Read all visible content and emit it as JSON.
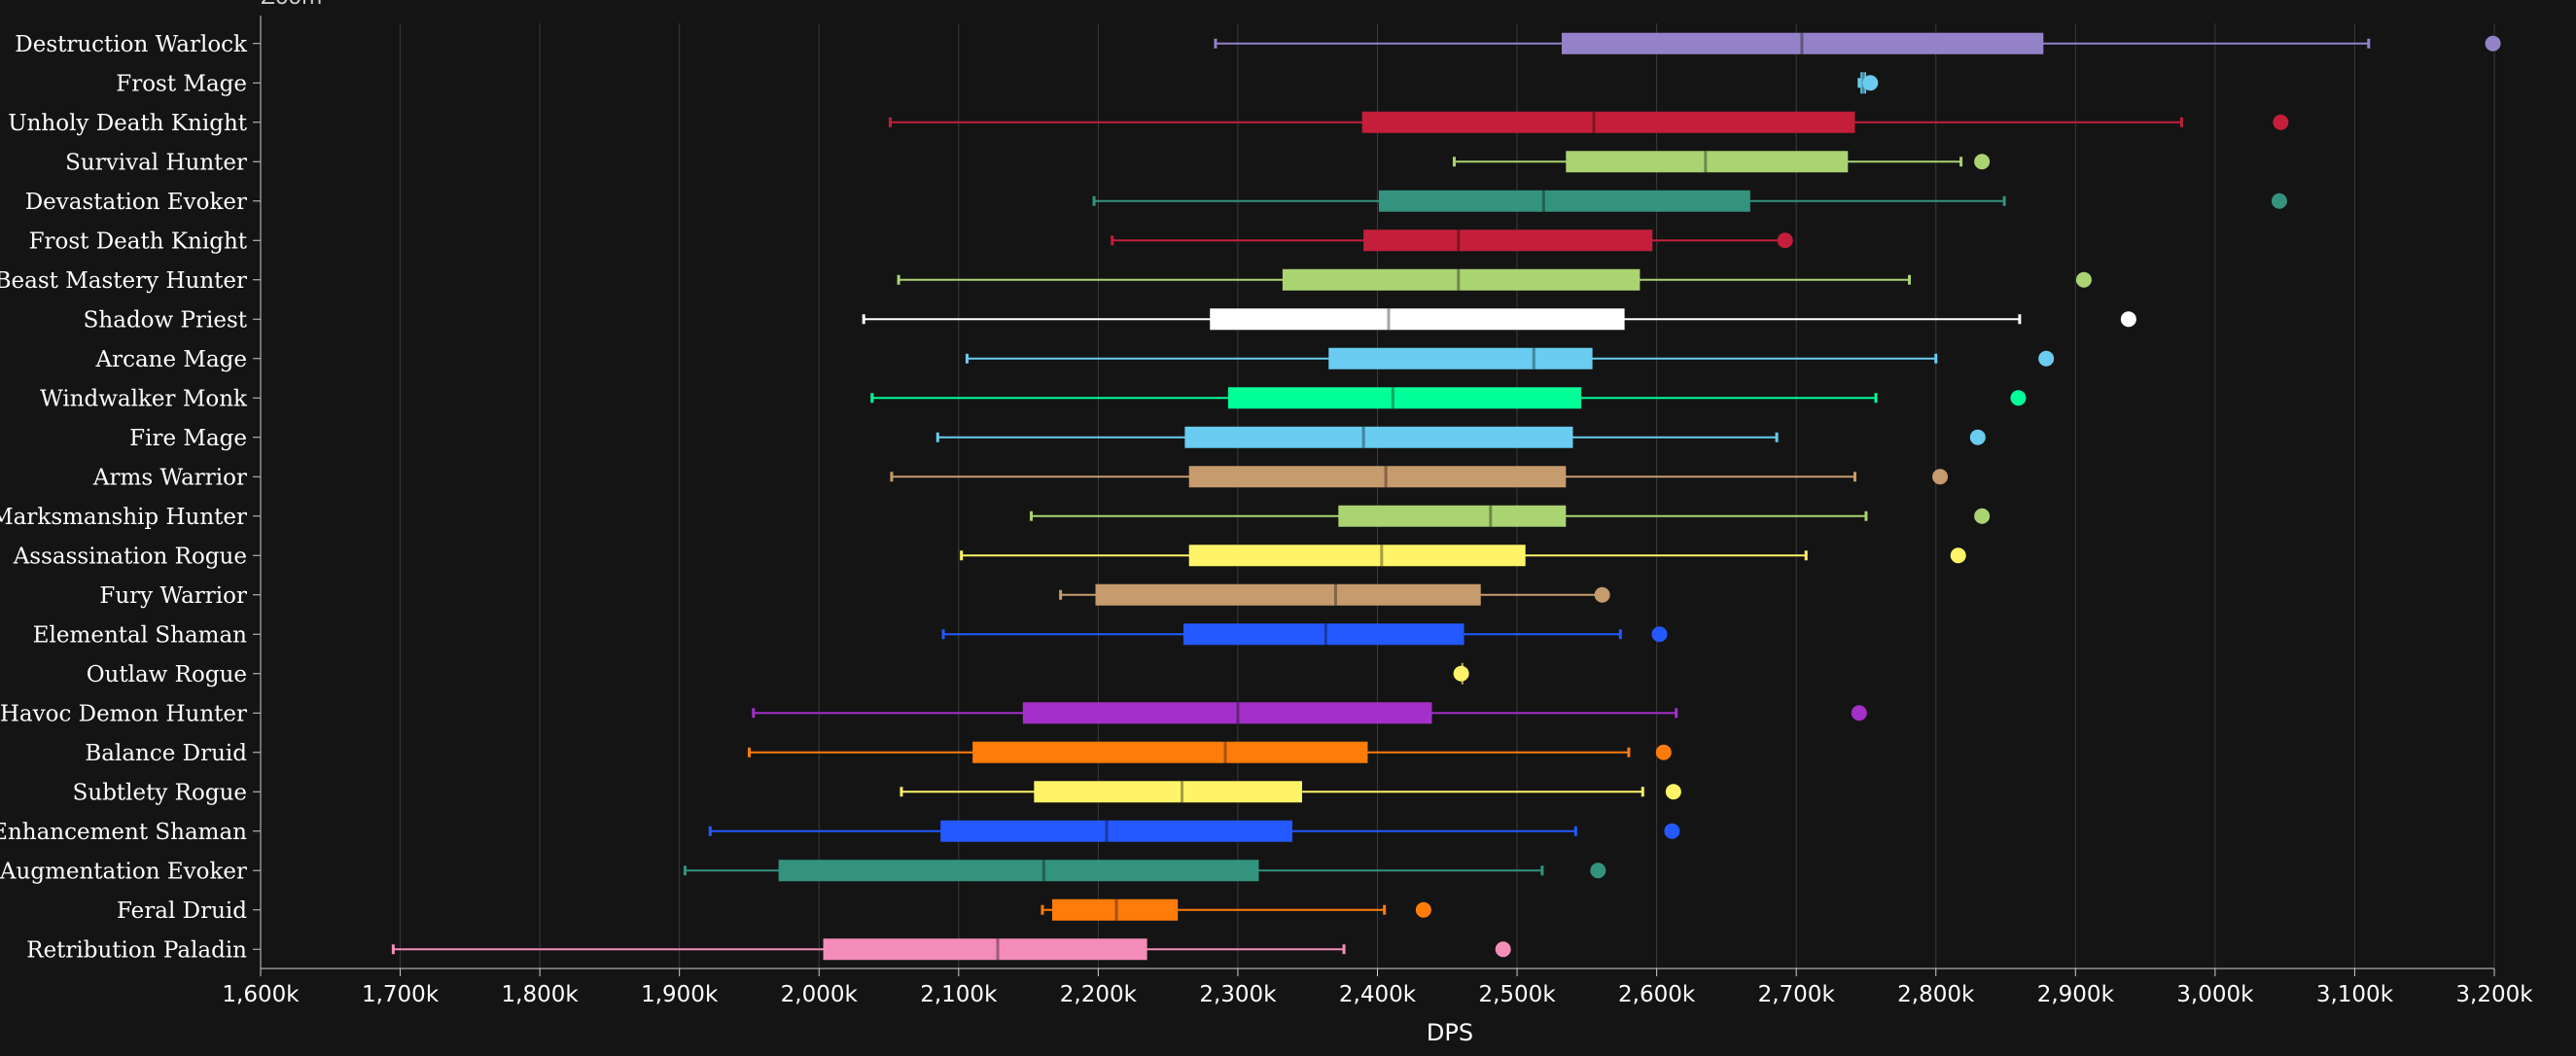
{
  "header": {
    "zoom_label": "Zoom"
  },
  "chart_data": {
    "type": "boxplot",
    "xlabel": "DPS",
    "xlim": [
      1600000,
      3200000
    ],
    "x_ticks": [
      1600000,
      1700000,
      1800000,
      1900000,
      2000000,
      2100000,
      2200000,
      2300000,
      2400000,
      2500000,
      2600000,
      2700000,
      2800000,
      2900000,
      3000000,
      3100000,
      3200000
    ],
    "x_tick_labels": [
      "1,600k",
      "1,700k",
      "1,800k",
      "1,900k",
      "2,000k",
      "2,100k",
      "2,200k",
      "2,300k",
      "2,400k",
      "2,500k",
      "2,600k",
      "2,700k",
      "2,800k",
      "2,900k",
      "3,000k",
      "3,100k",
      "3,200k"
    ],
    "grid": true,
    "series": [
      {
        "name": "Destruction Warlock",
        "color": "#9482c9",
        "min": 2284000,
        "q1": 2532000,
        "median": 2704000,
        "q3": 2877000,
        "max": 3110000,
        "outliers": [
          3199000
        ]
      },
      {
        "name": "Frost Mage",
        "color": "#69ccf0",
        "min": 2745000,
        "q1": 2746000,
        "median": 2748000,
        "q3": 2750000,
        "max": 2752000,
        "outliers": [
          2753000
        ]
      },
      {
        "name": "Unholy Death Knight",
        "color": "#c41e3a",
        "min": 2051000,
        "q1": 2389000,
        "median": 2555000,
        "q3": 2742000,
        "max": 2976000,
        "outliers": [
          3047000
        ]
      },
      {
        "name": "Survival Hunter",
        "color": "#aad372",
        "min": 2455000,
        "q1": 2535000,
        "median": 2635000,
        "q3": 2737000,
        "max": 2818000,
        "outliers": [
          2833000
        ]
      },
      {
        "name": "Devastation Evoker",
        "color": "#33937f",
        "min": 2197000,
        "q1": 2401000,
        "median": 2519000,
        "q3": 2667000,
        "max": 2849000,
        "outliers": [
          3046000
        ]
      },
      {
        "name": "Frost Death Knight",
        "color": "#c41e3a",
        "min": 2210000,
        "q1": 2390000,
        "median": 2458000,
        "q3": 2597000,
        "max": 2692000,
        "outliers": [
          2692000
        ]
      },
      {
        "name": "Beast Mastery Hunter",
        "color": "#aad372",
        "min": 2057000,
        "q1": 2332000,
        "median": 2458000,
        "q3": 2588000,
        "max": 2781000,
        "outliers": [
          2906000
        ]
      },
      {
        "name": "Shadow Priest",
        "color": "#ffffff",
        "min": 2032000,
        "q1": 2280000,
        "median": 2408000,
        "q3": 2577000,
        "max": 2860000,
        "outliers": [
          2938000
        ]
      },
      {
        "name": "Arcane Mage",
        "color": "#69ccf0",
        "min": 2106000,
        "q1": 2365000,
        "median": 2512000,
        "q3": 2554000,
        "max": 2800000,
        "outliers": [
          2879000
        ]
      },
      {
        "name": "Windwalker Monk",
        "color": "#00ff98",
        "min": 2038000,
        "q1": 2293000,
        "median": 2411000,
        "q3": 2546000,
        "max": 2757000,
        "outliers": [
          2859000
        ]
      },
      {
        "name": "Fire Mage",
        "color": "#69ccf0",
        "min": 2085000,
        "q1": 2262000,
        "median": 2390000,
        "q3": 2540000,
        "max": 2686000,
        "outliers": [
          2830000
        ]
      },
      {
        "name": "Arms Warrior",
        "color": "#c69b6d",
        "min": 2052000,
        "q1": 2265000,
        "median": 2406000,
        "q3": 2535000,
        "max": 2742000,
        "outliers": [
          2803000
        ]
      },
      {
        "name": "Marksmanship Hunter",
        "color": "#aad372",
        "min": 2152000,
        "q1": 2372000,
        "median": 2481000,
        "q3": 2535000,
        "max": 2750000,
        "outliers": [
          2833000
        ]
      },
      {
        "name": "Assassination Rogue",
        "color": "#fff468",
        "min": 2102000,
        "q1": 2265000,
        "median": 2403000,
        "q3": 2506000,
        "max": 2707000,
        "outliers": [
          2816000
        ]
      },
      {
        "name": "Fury Warrior",
        "color": "#c69b6d",
        "min": 2173000,
        "q1": 2198000,
        "median": 2370000,
        "q3": 2474000,
        "max": 2562000,
        "outliers": [
          2561000
        ]
      },
      {
        "name": "Elemental Shaman",
        "color": "#2459ff",
        "min": 2089000,
        "q1": 2261000,
        "median": 2363000,
        "q3": 2462000,
        "max": 2574000,
        "outliers": [
          2602000
        ]
      },
      {
        "name": "Outlaw Rogue",
        "color": "#fff468",
        "min": 2460000,
        "q1": 2460000,
        "median": 2460000,
        "q3": 2460000,
        "max": 2460000,
        "outliers": [
          2460000
        ]
      },
      {
        "name": "Havoc Demon Hunter",
        "color": "#a330c9",
        "min": 1953000,
        "q1": 2146000,
        "median": 2300000,
        "q3": 2439000,
        "max": 2614000,
        "outliers": [
          2745000
        ]
      },
      {
        "name": "Balance Druid",
        "color": "#ff7c0a",
        "min": 1950000,
        "q1": 2110000,
        "median": 2291000,
        "q3": 2393000,
        "max": 2580000,
        "outliers": [
          2605000
        ]
      },
      {
        "name": "Subtlety Rogue",
        "color": "#fff468",
        "min": 2059000,
        "q1": 2154000,
        "median": 2260000,
        "q3": 2346000,
        "max": 2590000,
        "outliers": [
          2612000
        ]
      },
      {
        "name": "Enhancement Shaman",
        "color": "#2459ff",
        "min": 1922000,
        "q1": 2087000,
        "median": 2206000,
        "q3": 2339000,
        "max": 2542000,
        "outliers": [
          2611000
        ]
      },
      {
        "name": "Augmentation Evoker",
        "color": "#33937f",
        "min": 1904000,
        "q1": 1971000,
        "median": 2161000,
        "q3": 2315000,
        "max": 2518000,
        "outliers": [
          2558000
        ]
      },
      {
        "name": "Feral Druid",
        "color": "#ff7c0a",
        "min": 2160000,
        "q1": 2167000,
        "median": 2213000,
        "q3": 2257000,
        "max": 2405000,
        "outliers": [
          2433000
        ]
      },
      {
        "name": "Retribution Paladin",
        "color": "#f48cba",
        "min": 1695000,
        "q1": 2003000,
        "median": 2128000,
        "q3": 2235000,
        "max": 2376000,
        "outliers": [
          2490000
        ]
      }
    ]
  }
}
